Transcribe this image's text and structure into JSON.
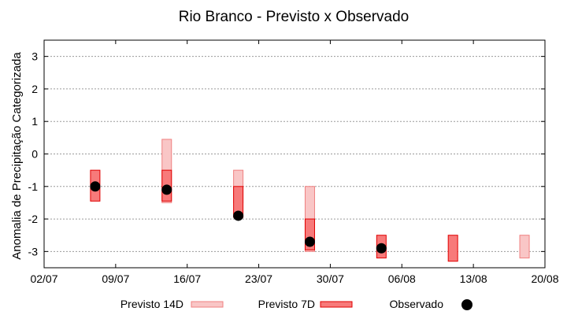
{
  "chart_data": {
    "type": "bar",
    "title": "Rio Branco - Previsto x Observado",
    "ylabel": "Anomalia de Precipitação Categorizada",
    "xlabel": "",
    "ylim": [
      -3.5,
      3.5
    ],
    "yticks": [
      3,
      2,
      1,
      0,
      -1,
      -2,
      -3
    ],
    "ytick_labels": [
      "3",
      "2",
      "1",
      "0",
      "-1",
      "-2",
      "-3"
    ],
    "xticks": [
      "2024-07-02",
      "2024-07-09",
      "2024-07-16",
      "2024-07-23",
      "2024-07-30",
      "2024-08-06",
      "2024-08-13",
      "2024-08-20"
    ],
    "xtick_labels": [
      "02/07",
      "09/07",
      "16/07",
      "23/07",
      "30/07",
      "06/08",
      "13/08",
      "20/08"
    ],
    "xlim": [
      "2024-07-02",
      "2024-08-20"
    ],
    "grid": true,
    "legend_position": "bottom",
    "series": [
      {
        "name": "Previsto 14D",
        "kind": "range",
        "color": "#f9c6c6",
        "edge": "#f08080",
        "points": [
          {
            "x": "2024-07-14",
            "low": -1.5,
            "high": 0.45
          },
          {
            "x": "2024-07-21",
            "low": -1.5,
            "high": -0.5
          },
          {
            "x": "2024-07-28",
            "low": -3.0,
            "high": -1.0
          },
          {
            "x": "2024-08-18",
            "low": -3.2,
            "high": -2.5
          }
        ]
      },
      {
        "name": "Previsto 7D",
        "kind": "range",
        "color": "#f77a7a",
        "edge": "#e00000",
        "points": [
          {
            "x": "2024-07-07",
            "low": -1.45,
            "high": -0.5
          },
          {
            "x": "2024-07-14",
            "low": -1.45,
            "high": -0.5
          },
          {
            "x": "2024-07-21",
            "low": -1.95,
            "high": -1.0
          },
          {
            "x": "2024-07-28",
            "low": -2.95,
            "high": -2.0
          },
          {
            "x": "2024-08-04",
            "low": -3.2,
            "high": -2.5
          },
          {
            "x": "2024-08-11",
            "low": -3.3,
            "high": -2.5
          }
        ]
      },
      {
        "name": "Observado",
        "kind": "point",
        "color": "#000000",
        "points": [
          {
            "x": "2024-07-07",
            "y": -1.0
          },
          {
            "x": "2024-07-14",
            "y": -1.1
          },
          {
            "x": "2024-07-21",
            "y": -1.9
          },
          {
            "x": "2024-07-28",
            "y": -2.7
          },
          {
            "x": "2024-08-04",
            "y": -2.9
          }
        ]
      }
    ]
  }
}
